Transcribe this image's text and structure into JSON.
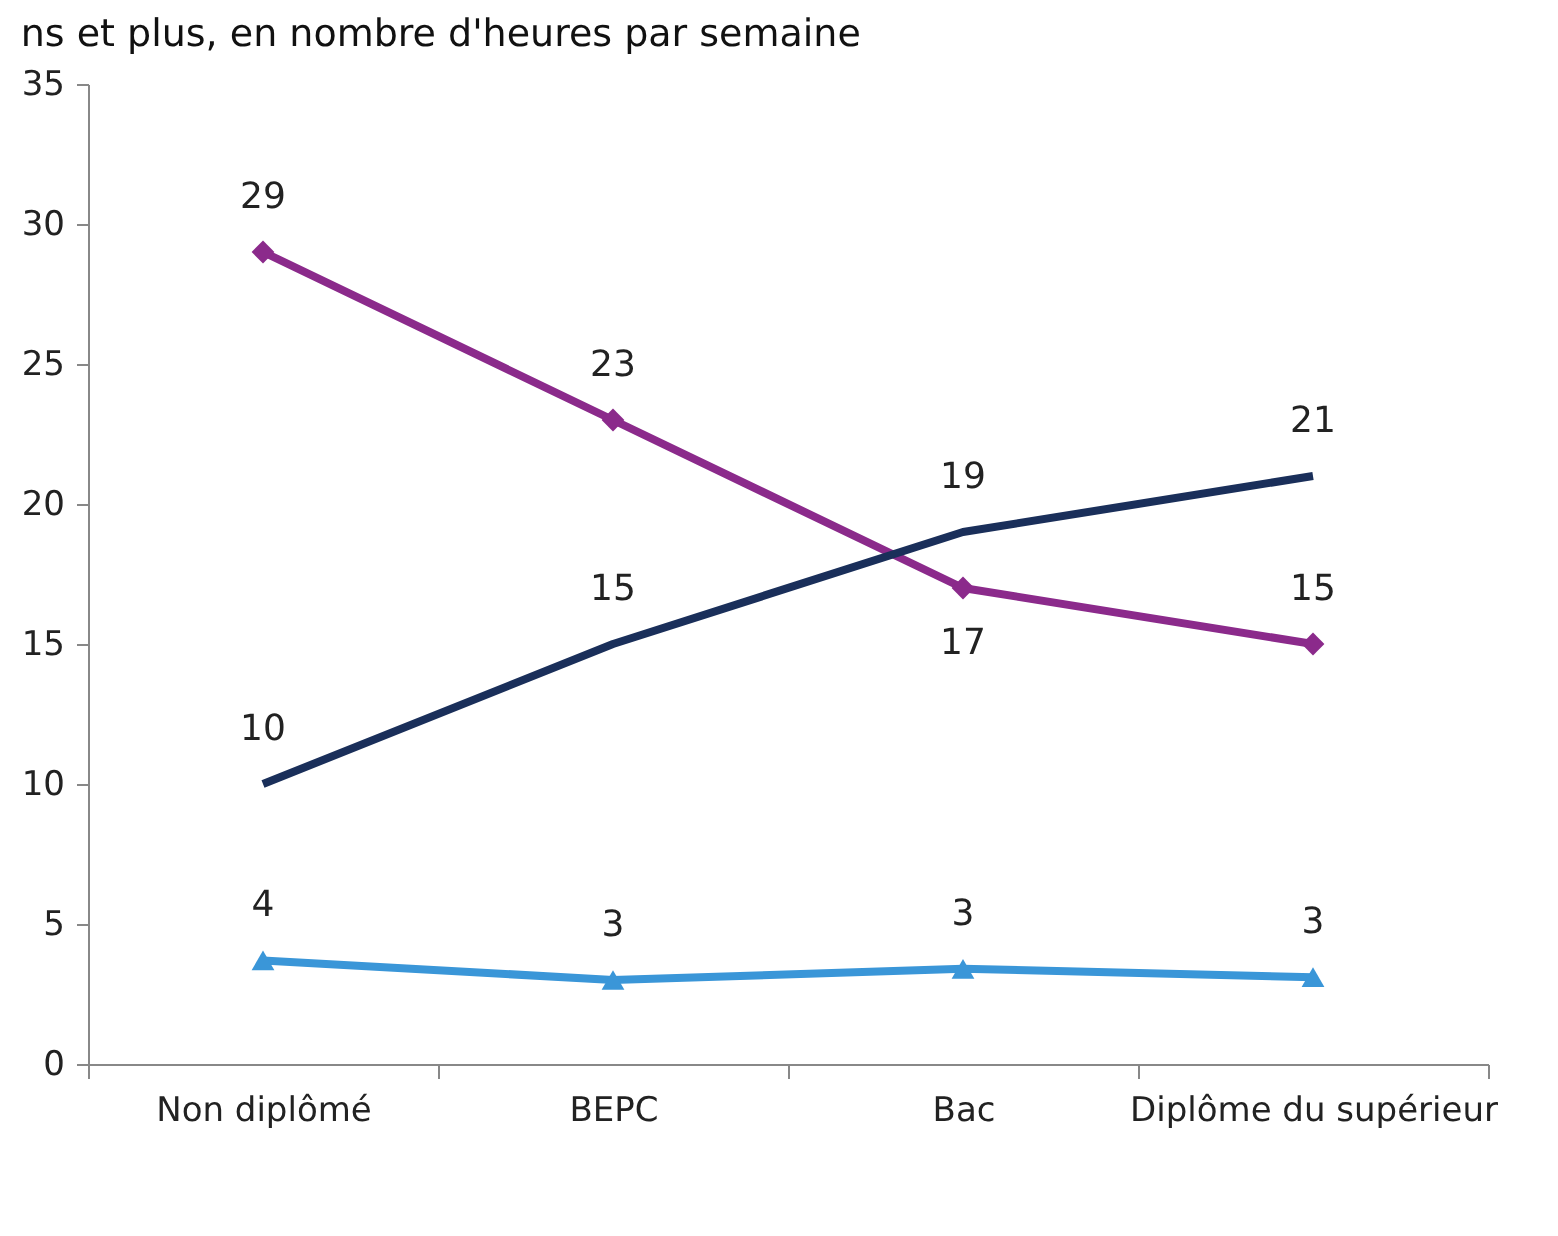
{
  "chart_data": {
    "type": "line",
    "title": "ns et plus, en nombre d'heures par semaine",
    "categories": [
      "Non diplômé",
      "BEPC",
      "Bac",
      "Diplôme du supérieur"
    ],
    "series": [
      {
        "color": "#8b2a8b",
        "marker": "diamond",
        "values": [
          29,
          23,
          17,
          15
        ],
        "value_labels": [
          "29",
          "23",
          "17",
          "15"
        ]
      },
      {
        "color": "#1a2f5a",
        "marker": "none",
        "values": [
          10,
          15,
          19,
          21
        ],
        "value_labels": [
          "10",
          "15",
          "19",
          "21"
        ]
      },
      {
        "color": "#3a96d8",
        "marker": "triangle",
        "values": [
          3.7,
          3.0,
          3.4,
          3.1
        ],
        "value_labels": [
          "4",
          "3",
          "3",
          "3"
        ]
      }
    ],
    "ylim": [
      0,
      35
    ],
    "yticks": [
      0,
      5,
      10,
      15,
      20,
      25,
      30,
      35
    ]
  }
}
